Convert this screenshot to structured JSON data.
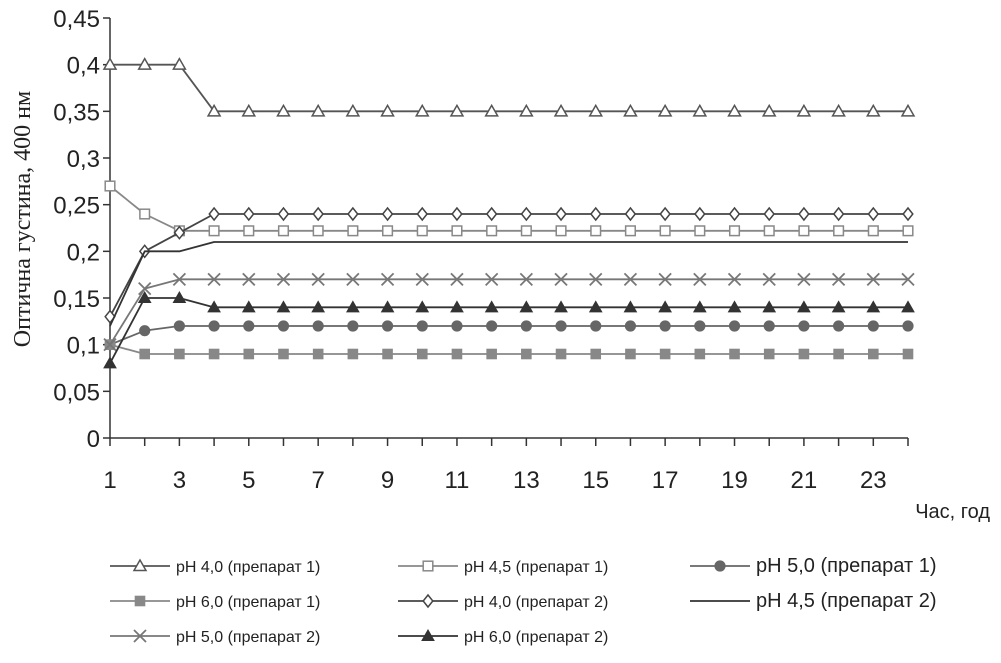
{
  "chart_data": {
    "type": "line",
    "title": "",
    "xlabel": "Час, год",
    "ylabel": "Оптична густина, 400 нм",
    "x": [
      1,
      2,
      3,
      4,
      5,
      6,
      7,
      8,
      9,
      10,
      11,
      12,
      13,
      14,
      15,
      16,
      17,
      18,
      19,
      20,
      21,
      22,
      23,
      24
    ],
    "xticks": [
      1,
      3,
      5,
      7,
      9,
      11,
      13,
      15,
      17,
      19,
      21,
      23
    ],
    "xtick_labels": [
      "1",
      "3",
      "5",
      "7",
      "9",
      "11",
      "13",
      "15",
      "17",
      "19",
      "21",
      "23"
    ],
    "ylim": [
      0,
      0.45
    ],
    "yticks": [
      0,
      0.05,
      0.1,
      0.15,
      0.2,
      0.25,
      0.3,
      0.35,
      0.4,
      0.45
    ],
    "ytick_labels": [
      "0",
      "0,05",
      "0,1",
      "0,15",
      "0,2",
      "0,25",
      "0,3",
      "0,35",
      "0,4",
      "0,45"
    ],
    "grid": false,
    "legend_position": "bottom",
    "series": [
      {
        "name": "pH 4,0 (препарат 1)",
        "marker": "triangle-open",
        "color": "#555555",
        "values": [
          0.4,
          0.4,
          0.4,
          0.35,
          0.35,
          0.35,
          0.35,
          0.35,
          0.35,
          0.35,
          0.35,
          0.35,
          0.35,
          0.35,
          0.35,
          0.35,
          0.35,
          0.35,
          0.35,
          0.35,
          0.35,
          0.35,
          0.35,
          0.35
        ]
      },
      {
        "name": "pH 4,5 (препарат 1)",
        "marker": "square-open",
        "color": "#888888",
        "values": [
          0.27,
          0.24,
          0.222,
          0.222,
          0.222,
          0.222,
          0.222,
          0.222,
          0.222,
          0.222,
          0.222,
          0.222,
          0.222,
          0.222,
          0.222,
          0.222,
          0.222,
          0.222,
          0.222,
          0.222,
          0.222,
          0.222,
          0.222,
          0.222
        ]
      },
      {
        "name": "pH 5,0 (препарат 1)",
        "marker": "circle-filled",
        "color": "#666666",
        "values": [
          0.1,
          0.115,
          0.12,
          0.12,
          0.12,
          0.12,
          0.12,
          0.12,
          0.12,
          0.12,
          0.12,
          0.12,
          0.12,
          0.12,
          0.12,
          0.12,
          0.12,
          0.12,
          0.12,
          0.12,
          0.12,
          0.12,
          0.12,
          0.12
        ]
      },
      {
        "name": "pH 6,0 (препарат 1)",
        "marker": "square-filled",
        "color": "#888888",
        "values": [
          0.1,
          0.09,
          0.09,
          0.09,
          0.09,
          0.09,
          0.09,
          0.09,
          0.09,
          0.09,
          0.09,
          0.09,
          0.09,
          0.09,
          0.09,
          0.09,
          0.09,
          0.09,
          0.09,
          0.09,
          0.09,
          0.09,
          0.09,
          0.09
        ]
      },
      {
        "name": "pH 4,0 (препарат 2)",
        "marker": "diamond-open",
        "color": "#444444",
        "values": [
          0.13,
          0.2,
          0.22,
          0.24,
          0.24,
          0.24,
          0.24,
          0.24,
          0.24,
          0.24,
          0.24,
          0.24,
          0.24,
          0.24,
          0.24,
          0.24,
          0.24,
          0.24,
          0.24,
          0.24,
          0.24,
          0.24,
          0.24,
          0.24
        ]
      },
      {
        "name": "pH 4,5 (препарат 2)",
        "marker": "none",
        "color": "#333333",
        "values": [
          0.12,
          0.2,
          0.2,
          0.21,
          0.21,
          0.21,
          0.21,
          0.21,
          0.21,
          0.21,
          0.21,
          0.21,
          0.21,
          0.21,
          0.21,
          0.21,
          0.21,
          0.21,
          0.21,
          0.21,
          0.21,
          0.21,
          0.21,
          0.21
        ]
      },
      {
        "name": "pH 5,0 (препарат 2)",
        "marker": "x",
        "color": "#777777",
        "values": [
          0.1,
          0.16,
          0.17,
          0.17,
          0.17,
          0.17,
          0.17,
          0.17,
          0.17,
          0.17,
          0.17,
          0.17,
          0.17,
          0.17,
          0.17,
          0.17,
          0.17,
          0.17,
          0.17,
          0.17,
          0.17,
          0.17,
          0.17,
          0.17
        ]
      },
      {
        "name": "pH 6,0 (препарат 2)",
        "marker": "triangle-filled",
        "color": "#333333",
        "values": [
          0.08,
          0.15,
          0.15,
          0.14,
          0.14,
          0.14,
          0.14,
          0.14,
          0.14,
          0.14,
          0.14,
          0.14,
          0.14,
          0.14,
          0.14,
          0.14,
          0.14,
          0.14,
          0.14,
          0.14,
          0.14,
          0.14,
          0.14,
          0.14
        ]
      }
    ]
  }
}
